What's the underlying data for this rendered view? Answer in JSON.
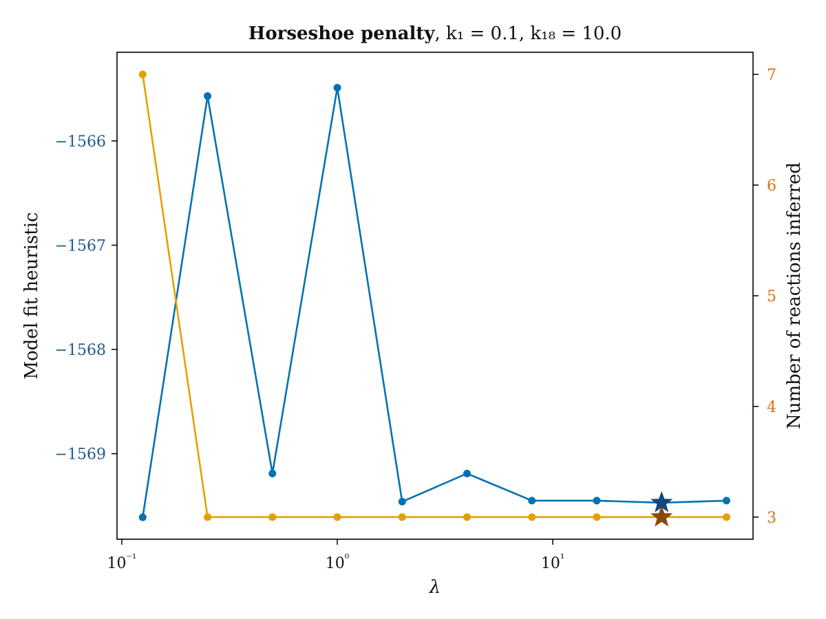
{
  "chart_data": {
    "type": "line",
    "title": {
      "bold": "Horseshoe penalty",
      "rest": ", k₁ = 0.1, k₁₈ = 10.0"
    },
    "xlabel": "λ",
    "ylabel_left": "Model fit heuristic",
    "ylabel_right": "Number of reactions inferred",
    "x_scale": "log",
    "xlim": [
      0.095,
      85
    ],
    "ylim_left": [
      -1569.82,
      -1565.15
    ],
    "ylim_right": [
      2.8,
      7.2
    ],
    "x_ticks": [
      {
        "value": 0.1,
        "label": "10⁻¹"
      },
      {
        "value": 1,
        "label": "10⁰"
      },
      {
        "value": 10,
        "label": "10¹"
      }
    ],
    "y_ticks_left": [
      {
        "value": -1566,
        "label": "−1566"
      },
      {
        "value": -1567,
        "label": "−1567"
      },
      {
        "value": -1568,
        "label": "−1568"
      },
      {
        "value": -1569,
        "label": "−1569"
      }
    ],
    "y_ticks_right": [
      {
        "value": 3,
        "label": "3"
      },
      {
        "value": 4,
        "label": "4"
      },
      {
        "value": 5,
        "label": "5"
      },
      {
        "value": 6,
        "label": "6"
      },
      {
        "value": 7,
        "label": "7"
      }
    ],
    "x": [
      0.125,
      0.25,
      0.5,
      1,
      2,
      4,
      8,
      16,
      32,
      64
    ],
    "series": [
      {
        "axis": "left",
        "color": "#0072b2",
        "values": [
          -1569.61,
          -1565.57,
          -1569.19,
          -1565.49,
          -1569.46,
          -1569.19,
          -1569.45,
          -1569.45,
          -1569.47,
          -1569.45
        ]
      },
      {
        "axis": "right",
        "color": "#e69f00",
        "values": [
          7,
          3,
          3,
          3,
          3,
          3,
          3,
          3,
          3,
          3
        ]
      }
    ],
    "highlight": {
      "x": 32,
      "left_value": -1569.47,
      "right_value": 3,
      "left_color": "#12487f",
      "right_color": "#8a4a00"
    },
    "colors": {
      "left_tick_labels": "#1f5b8f",
      "right_tick_labels": "#d9710c"
    },
    "grid": false,
    "legend": "none"
  }
}
